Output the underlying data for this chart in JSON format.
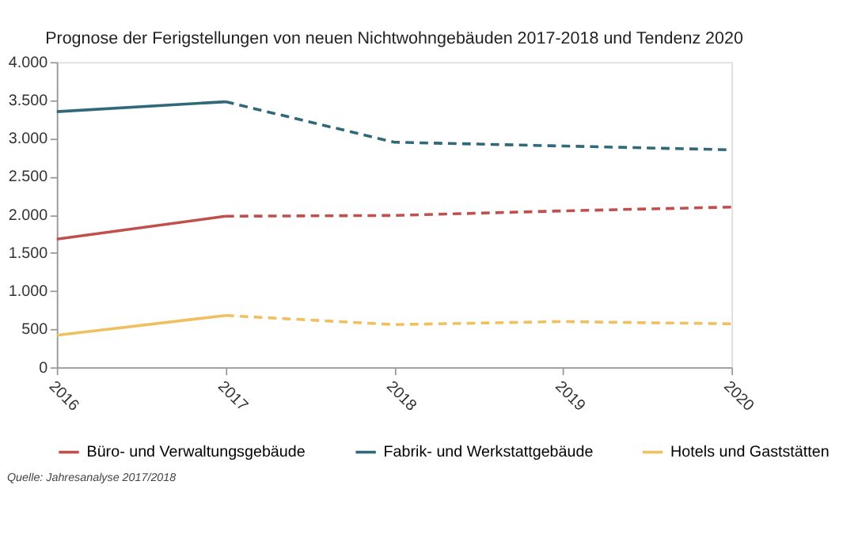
{
  "chart_data": {
    "type": "line",
    "title": "Prognose der Ferigstellungen von neuen Nichtwohngebäuden 2017-2018 und Tendenz 2020",
    "categories": [
      "2016",
      "2017",
      "2018",
      "2019",
      "2020"
    ],
    "series": [
      {
        "name": "Büro- und Verwaltungsgebäude",
        "color": "#c0504d",
        "line_style": "solid",
        "values": [
          1680,
          1980,
          null,
          null,
          null
        ]
      },
      {
        "name": "Fabrik- und Werkstattgebäude",
        "color": "#31697a",
        "line_style": "solid",
        "values": [
          3350,
          3480,
          null,
          null,
          null
        ]
      },
      {
        "name": "Hotels und Gaststätten",
        "color": "#f0c060",
        "line_style": "solid",
        "values": [
          420,
          680,
          null,
          null,
          null
        ]
      },
      {
        "color": "#c0504d",
        "line_style": "dashed",
        "values": [
          null,
          1980,
          1990,
          2050,
          2100
        ]
      },
      {
        "color": "#31697a",
        "line_style": "dashed",
        "values": [
          null,
          3480,
          2950,
          2900,
          2850
        ]
      },
      {
        "color": "#f0c060",
        "line_style": "dashed",
        "values": [
          null,
          680,
          560,
          600,
          570
        ]
      }
    ],
    "ylim": [
      0,
      4000
    ],
    "yticks": [
      {
        "value": 0,
        "label": "0"
      },
      {
        "value": 500,
        "label": "500"
      },
      {
        "value": 1000,
        "label": "1.000"
      },
      {
        "value": 1500,
        "label": "1.500"
      },
      {
        "value": 2000,
        "label": "2.000"
      },
      {
        "value": 2500,
        "label": "2.500"
      },
      {
        "value": 3000,
        "label": "3.000"
      },
      {
        "value": 3500,
        "label": "3.500"
      },
      {
        "value": 4000,
        "label": "4.000"
      }
    ],
    "grid": false,
    "legend": "bottom",
    "marker": "none",
    "annotations": [
      "Quelle: Jahresanalyse 2017/2018"
    ]
  }
}
